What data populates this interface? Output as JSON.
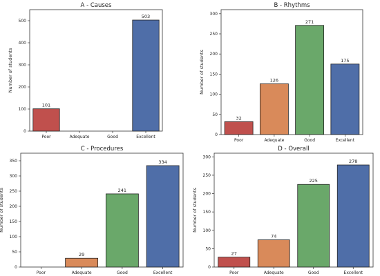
{
  "chart_data": [
    {
      "type": "bar",
      "title": "A - Causes",
      "xlabel": "",
      "ylabel": "Number of students",
      "categories": [
        "Poor",
        "Adequate",
        "Good",
        "Excellent"
      ],
      "values": [
        101,
        null,
        null,
        503
      ],
      "value_labels": [
        "101",
        "",
        "",
        "503"
      ],
      "colors": [
        "#c0504d",
        "#d98a5a",
        "#6aa86a",
        "#4f6ea8"
      ],
      "ylim": [
        0,
        550
      ],
      "yticks": [
        0,
        100,
        200,
        300,
        400,
        500
      ],
      "grid": false
    },
    {
      "type": "bar",
      "title": "B - Rhythms",
      "xlabel": "",
      "ylabel": "Number of students",
      "categories": [
        "Poor",
        "Adequate",
        "Good",
        "Excellent"
      ],
      "values": [
        32,
        126,
        271,
        175
      ],
      "value_labels": [
        "32",
        "126",
        "271",
        "175"
      ],
      "colors": [
        "#c0504d",
        "#d98a5a",
        "#6aa86a",
        "#4f6ea8"
      ],
      "ylim": [
        0,
        310
      ],
      "yticks": [
        0,
        50,
        100,
        150,
        200,
        250,
        300
      ],
      "grid": false
    },
    {
      "type": "bar",
      "title": "C - Procedures",
      "xlabel": "",
      "ylabel": "Number of students",
      "categories": [
        "Poor",
        "Adequate",
        "Good",
        "Excellent"
      ],
      "values": [
        null,
        29,
        241,
        334
      ],
      "value_labels": [
        "",
        "29",
        "241",
        "334"
      ],
      "colors": [
        "#c0504d",
        "#d98a5a",
        "#6aa86a",
        "#4f6ea8"
      ],
      "ylim": [
        0,
        375
      ],
      "yticks": [
        0,
        50,
        100,
        150,
        200,
        250,
        300,
        350
      ],
      "grid": false
    },
    {
      "type": "bar",
      "title": "D - Overall",
      "xlabel": "",
      "ylabel": "Number of students",
      "categories": [
        "Poor",
        "Adequate",
        "Good",
        "Excellent"
      ],
      "values": [
        27,
        74,
        225,
        278
      ],
      "value_labels": [
        "27",
        "74",
        "225",
        "278"
      ],
      "colors": [
        "#c0504d",
        "#d98a5a",
        "#6aa86a",
        "#4f6ea8"
      ],
      "ylim": [
        0,
        310
      ],
      "yticks": [
        0,
        50,
        100,
        150,
        200,
        250,
        300
      ],
      "grid": false
    }
  ]
}
